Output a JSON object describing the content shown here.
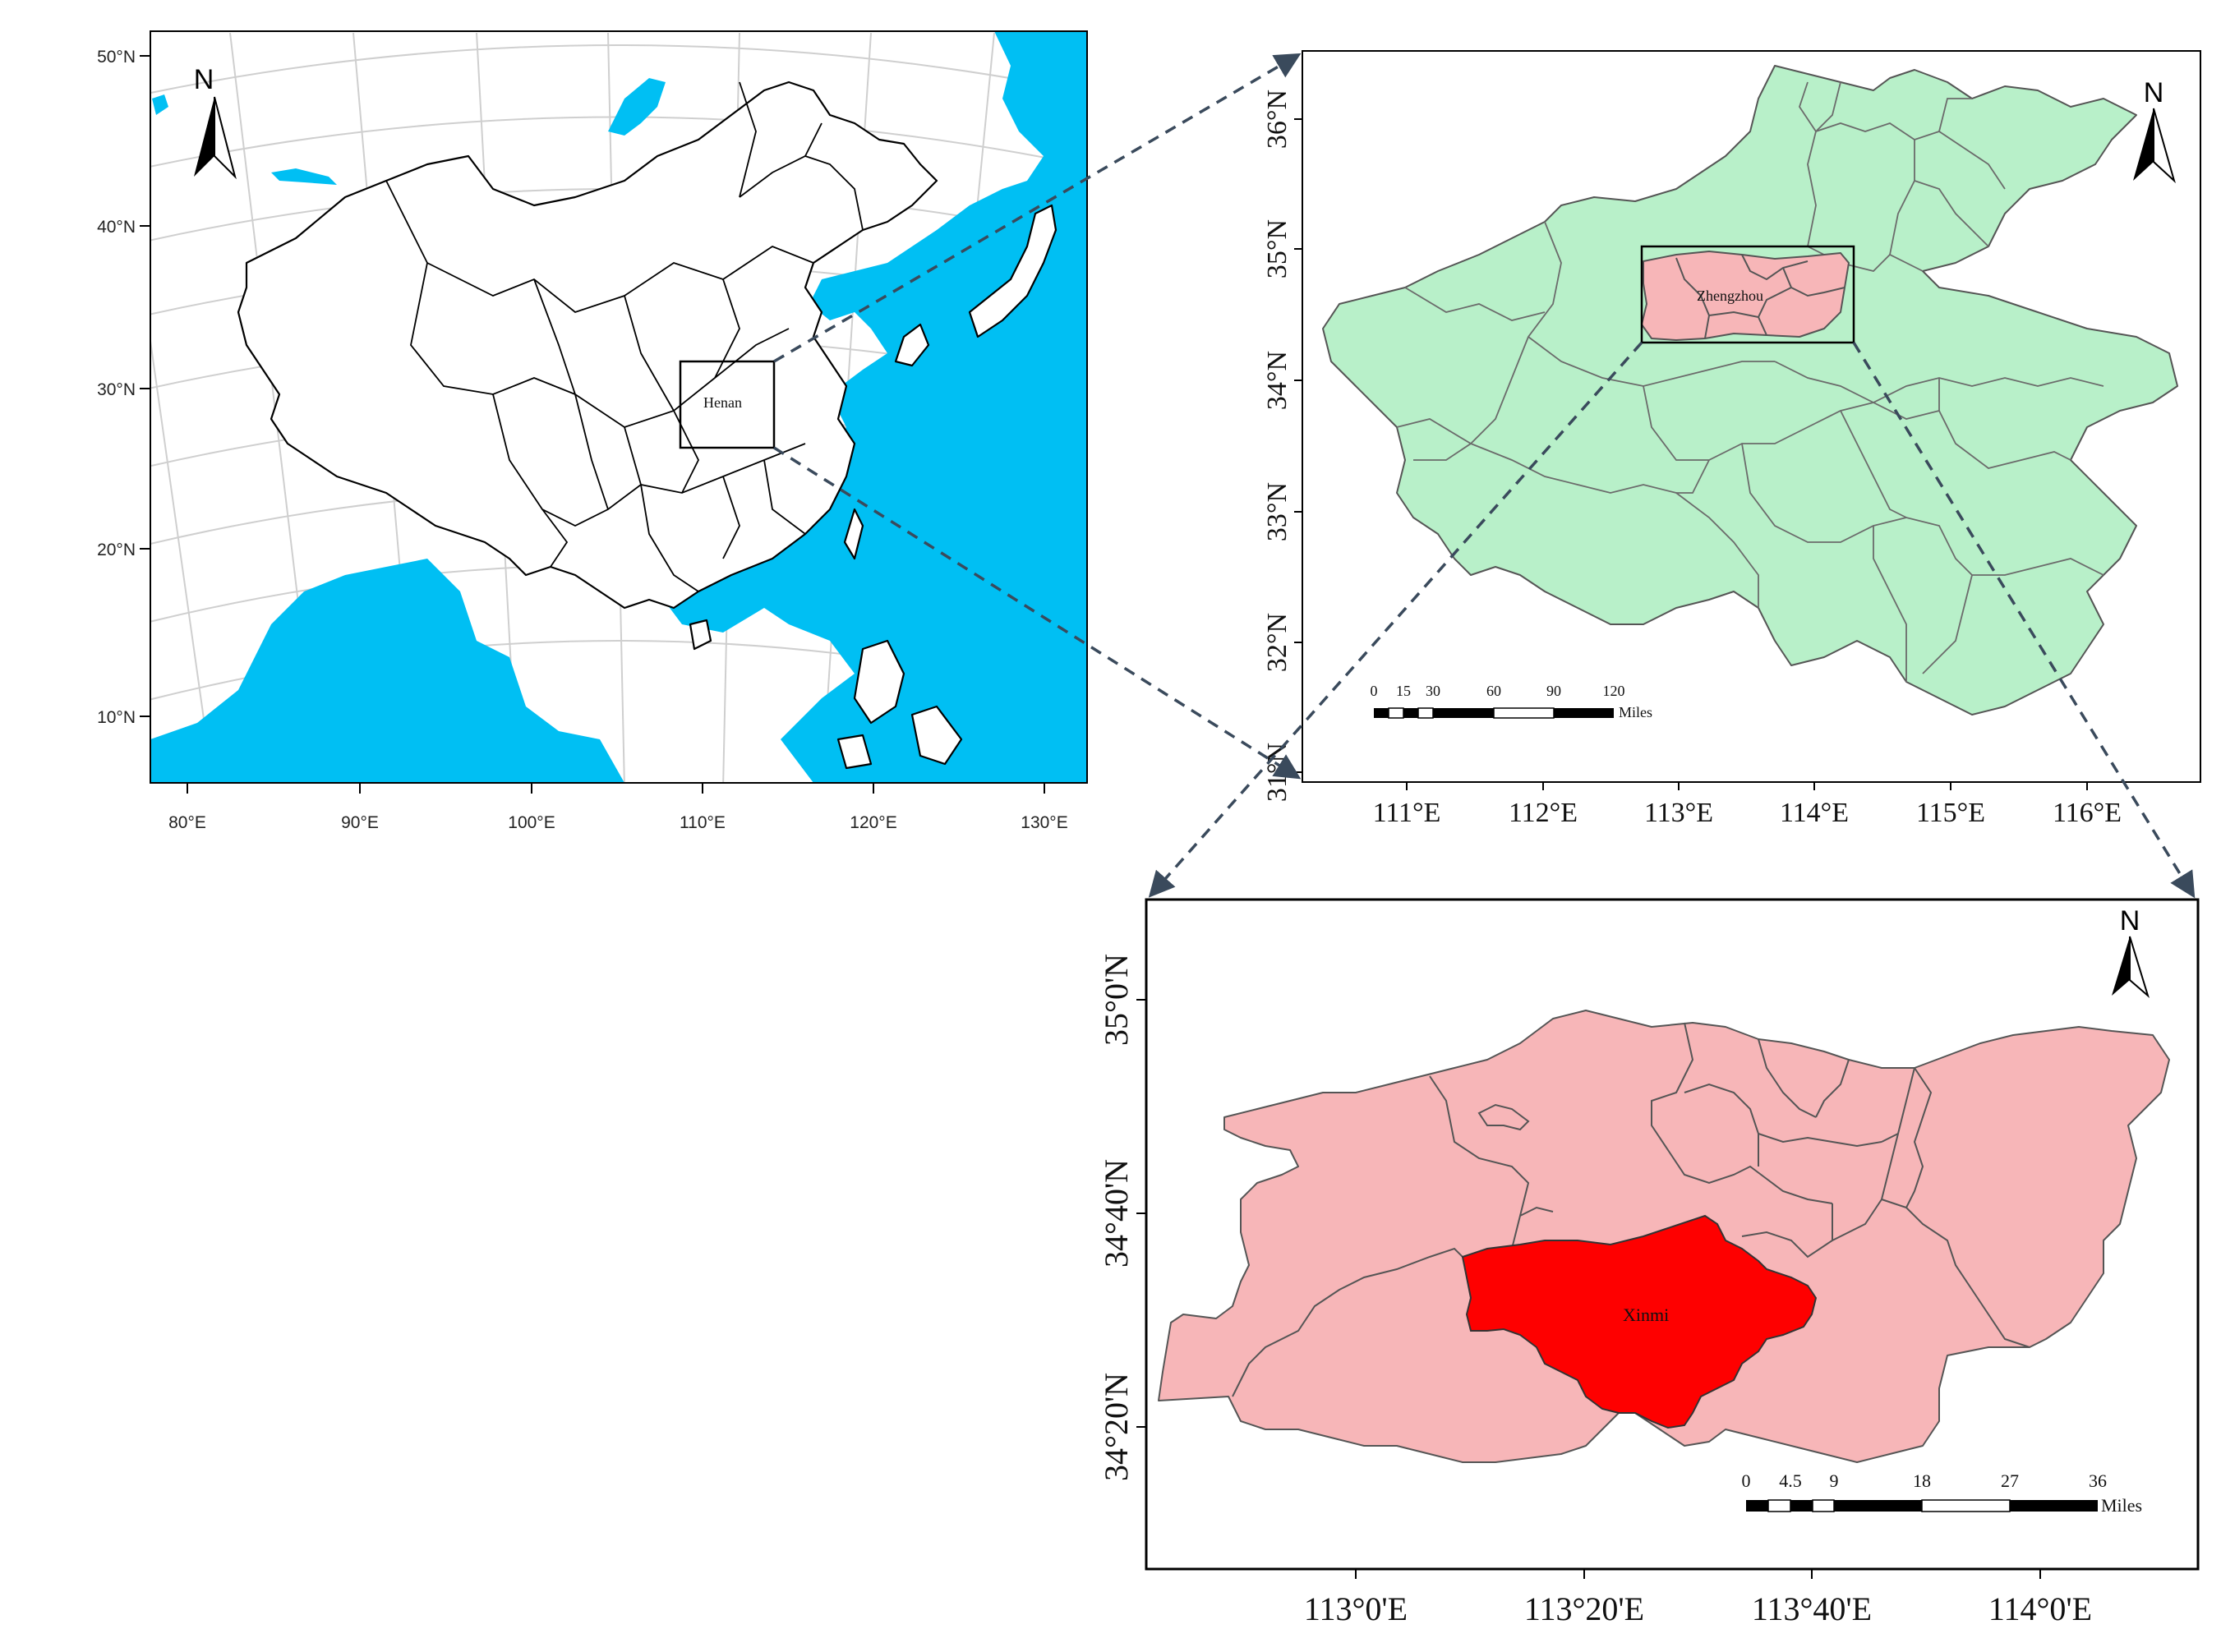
{
  "panel_china": {
    "lat_labels": [
      "50°N",
      "40°N",
      "30°N",
      "20°N",
      "10°N"
    ],
    "lon_labels": [
      "80°E",
      "90°E",
      "100°E",
      "110°E",
      "120°E",
      "130°E"
    ],
    "north": "N",
    "region_label": "Henan",
    "sea_color": "#00bff3"
  },
  "panel_henan": {
    "lat_labels": [
      "36°N",
      "35°N",
      "34°N",
      "33°N",
      "32°N",
      "31°N"
    ],
    "lon_labels": [
      "111°E",
      "112°E",
      "113°E",
      "114°E",
      "115°E",
      "116°E"
    ],
    "north": "N",
    "region_label": "Zhengzhou",
    "fill_color": "#b8f0c9",
    "scale_ticks": [
      "0",
      "15",
      "30",
      "60",
      "90",
      "120"
    ],
    "scale_unit": "Miles"
  },
  "panel_zhengzhou": {
    "lat_labels": [
      "35°0'N",
      "34°40'N",
      "34°20'N"
    ],
    "lon_labels": [
      "113°0'E",
      "113°20'E",
      "113°40'E",
      "114°0'E"
    ],
    "north": "N",
    "region_label": "Xinmi",
    "fill_color": "#f7b6b8",
    "highlight_color": "#fe0000",
    "scale_ticks": [
      "0",
      "4.5",
      "9",
      "18",
      "27",
      "36"
    ],
    "scale_unit": "Miles"
  }
}
